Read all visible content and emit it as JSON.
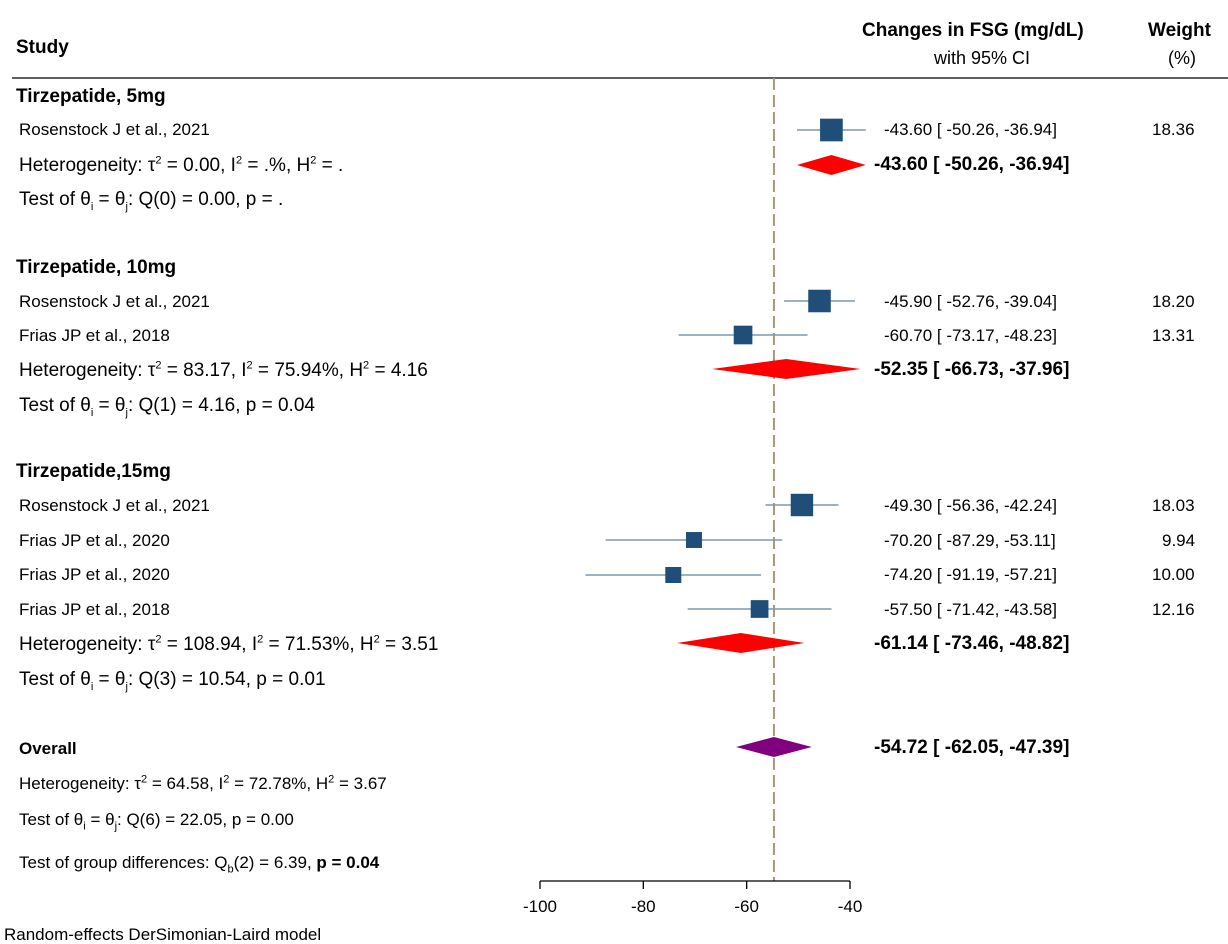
{
  "header": {
    "study": "Study",
    "effect_line1": "Changes in FSG (mg/dL)",
    "effect_line2": "with 95% CI",
    "weight_line1": "Weight",
    "weight_line2": "(%)"
  },
  "groups": [
    {
      "label": "Tirzepatide, 5mg",
      "studies": [
        {
          "label": "Rosenstock J et al.,  2021",
          "ci": "-43.60 [  -50.26,   -36.94]",
          "weight": "18.36"
        }
      ],
      "heterogeneity": {
        "tau2": "0.00",
        "i2": ".%",
        "h2": "."
      },
      "pooled_ci": "-43.60 [ -50.26,  -36.94]",
      "test": {
        "df": "0",
        "q": "0.00",
        "p": "."
      }
    },
    {
      "label": "Tirzepatide, 10mg",
      "studies": [
        {
          "label": "Rosenstock J et al.,  2021",
          "ci": "-45.90 [  -52.76,   -39.04]",
          "weight": "18.20"
        },
        {
          "label": "Frias JP et al., 2018",
          "ci": "-60.70 [  -73.17,   -48.23]",
          "weight": "13.31"
        }
      ],
      "heterogeneity": {
        "tau2": "83.17",
        "i2": "75.94%",
        "h2": "4.16"
      },
      "pooled_ci": "-52.35 [ -66.73,  -37.96]",
      "test": {
        "df": "1",
        "q": "4.16",
        "p": "0.04"
      }
    },
    {
      "label": "Tirzepatide,15mg",
      "studies": [
        {
          "label": "Rosenstock J et al.,  2021",
          "ci": "-49.30 [  -56.36,   -42.24]",
          "weight": "18.03"
        },
        {
          "label": "Frias JP et al., 2020",
          "ci": "-70.20 [  -87.29,   -53.11]",
          "weight": "9.94"
        },
        {
          "label": "Frias JP et al., 2020",
          "ci": "-74.20 [  -91.19,   -57.21]",
          "weight": "10.00"
        },
        {
          "label": "Frias JP et al., 2018",
          "ci": "-57.50 [  -71.42,   -43.58]",
          "weight": "12.16"
        }
      ],
      "heterogeneity": {
        "tau2": "108.94",
        "i2": "71.53%",
        "h2": "3.51"
      },
      "pooled_ci": "-61.14 [ -73.46,  -48.82]",
      "test": {
        "df": "3",
        "q": "10.54",
        "p": "0.01"
      }
    }
  ],
  "overall": {
    "label": "Overall",
    "pooled_ci": "-54.72 [ -62.05,  -47.39]",
    "heterogeneity": {
      "tau2": "64.58",
      "i2": "72.78%",
      "h2": "3.67"
    },
    "test": {
      "df": "6",
      "q": "22.05",
      "p": "0.00"
    },
    "group_diff": {
      "df": "2",
      "q": "6.39",
      "p": "0.04"
    }
  },
  "footer": "Random-effects DerSimonian-Laird model",
  "colors": {
    "study_marker": "#1f4e79",
    "ci_line": "#7f97ad",
    "group_diamond": "#ff0000",
    "overall_diamond": "#800080",
    "ref_line": "#a89878",
    "separator": "#000000"
  },
  "chart_data": {
    "type": "forest",
    "x_ticks": [
      -100,
      -80,
      -60,
      -40
    ],
    "xlim": [
      -100,
      -40
    ],
    "reference_line": -54.72,
    "series": [
      {
        "group": "Tirzepatide, 5mg",
        "points": [
          {
            "estimate": -43.6,
            "lower": -50.26,
            "upper": -36.94,
            "weight": 18.36
          }
        ],
        "pooled": {
          "estimate": -43.6,
          "lower": -50.26,
          "upper": -36.94
        }
      },
      {
        "group": "Tirzepatide, 10mg",
        "points": [
          {
            "estimate": -45.9,
            "lower": -52.76,
            "upper": -39.04,
            "weight": 18.2
          },
          {
            "estimate": -60.7,
            "lower": -73.17,
            "upper": -48.23,
            "weight": 13.31
          }
        ],
        "pooled": {
          "estimate": -52.35,
          "lower": -66.73,
          "upper": -37.96
        }
      },
      {
        "group": "Tirzepatide,15mg",
        "points": [
          {
            "estimate": -49.3,
            "lower": -56.36,
            "upper": -42.24,
            "weight": 18.03
          },
          {
            "estimate": -70.2,
            "lower": -87.29,
            "upper": -53.11,
            "weight": 9.94
          },
          {
            "estimate": -74.2,
            "lower": -91.19,
            "upper": -57.21,
            "weight": 10.0
          },
          {
            "estimate": -57.5,
            "lower": -71.42,
            "upper": -43.58,
            "weight": 12.16
          }
        ],
        "pooled": {
          "estimate": -61.14,
          "lower": -73.46,
          "upper": -48.82
        }
      }
    ],
    "overall": {
      "estimate": -54.72,
      "lower": -62.05,
      "upper": -47.39
    }
  }
}
